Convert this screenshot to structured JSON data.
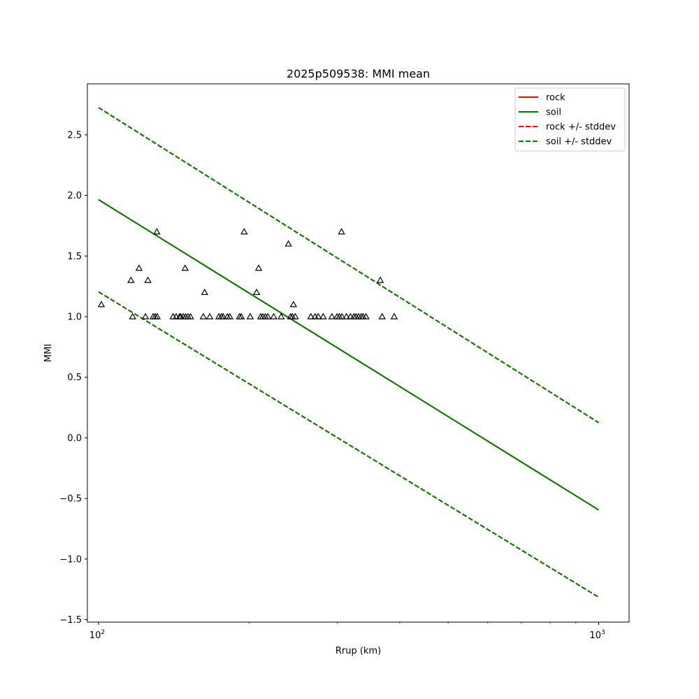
{
  "chart_data": {
    "type": "scatter",
    "title": "2025p509538: MMI mean",
    "xlabel": "Rrup (km)",
    "ylabel": "MMI",
    "xscale": "log",
    "xlim": [
      95,
      1150
    ],
    "ylim": [
      -1.52,
      2.92
    ],
    "grid": false,
    "legend_position": "top-right",
    "y_ticks": [
      {
        "value": -1.5,
        "label": "−1.5"
      },
      {
        "value": -1.0,
        "label": "−1.0"
      },
      {
        "value": -0.5,
        "label": "−0.5"
      },
      {
        "value": 0.0,
        "label": "0.0"
      },
      {
        "value": 0.5,
        "label": "0.5"
      },
      {
        "value": 1.0,
        "label": "1.0"
      },
      {
        "value": 1.5,
        "label": "1.5"
      },
      {
        "value": 2.0,
        "label": "2.0"
      },
      {
        "value": 2.5,
        "label": "2.5"
      }
    ],
    "x_ticks": [
      {
        "value": 100,
        "base": "10",
        "exp": "2"
      },
      {
        "value": 1000,
        "base": "10",
        "exp": "3"
      }
    ],
    "x_minor_ticks": [
      200,
      300,
      400,
      500,
      600,
      700,
      800,
      900
    ],
    "series": [
      {
        "name": "rock",
        "color": "#ff0000",
        "dash": false,
        "x": [
          100,
          1000
        ],
        "y": [
          1.965,
          -0.595
        ]
      },
      {
        "name": "soil",
        "color": "#008000",
        "dash": false,
        "x": [
          100,
          1000
        ],
        "y": [
          1.965,
          -0.595
        ]
      },
      {
        "name": "rock +/- stddev",
        "color": "#ff0000",
        "dash": true,
        "x": [
          100,
          1000
        ],
        "y": [
          2.725,
          0.125
        ],
        "y2": [
          1.205,
          -1.315
        ]
      },
      {
        "name": "soil +/- stddev",
        "color": "#008000",
        "dash": true,
        "x": [
          100,
          1000
        ],
        "y": [
          2.725,
          0.125
        ],
        "y2": [
          1.205,
          -1.315
        ]
      }
    ],
    "observations": {
      "marker": "triangle",
      "color": "#000000",
      "points": [
        [
          101.3,
          1.1
        ],
        [
          116.1,
          1.3
        ],
        [
          117.0,
          1.0
        ],
        [
          120.5,
          1.4
        ],
        [
          124.1,
          1.0
        ],
        [
          125.5,
          1.3
        ],
        [
          128.6,
          1.0
        ],
        [
          129.8,
          1.0
        ],
        [
          131.0,
          1.0
        ],
        [
          130.8,
          1.7
        ],
        [
          141.0,
          1.0
        ],
        [
          143.0,
          1.0
        ],
        [
          145.3,
          1.0
        ],
        [
          146.0,
          1.0
        ],
        [
          147.7,
          1.0
        ],
        [
          149.0,
          1.4
        ],
        [
          149.3,
          1.0
        ],
        [
          150.9,
          1.0
        ],
        [
          152.7,
          1.0
        ],
        [
          162.0,
          1.0
        ],
        [
          163.0,
          1.2
        ],
        [
          166.9,
          1.0
        ],
        [
          174.0,
          1.0
        ],
        [
          176.0,
          1.0
        ],
        [
          177.5,
          1.0
        ],
        [
          181.0,
          1.0
        ],
        [
          183.0,
          1.0
        ],
        [
          191.3,
          1.0
        ],
        [
          192.9,
          1.0
        ],
        [
          195.5,
          1.7
        ],
        [
          201.0,
          1.0
        ],
        [
          207.0,
          1.2
        ],
        [
          209.0,
          1.4
        ],
        [
          211.0,
          1.0
        ],
        [
          213.0,
          1.0
        ],
        [
          215.5,
          1.0
        ],
        [
          218.0,
          1.0
        ],
        [
          224.0,
          1.0
        ],
        [
          231.8,
          1.0
        ],
        [
          239.7,
          1.6
        ],
        [
          242.0,
          1.0
        ],
        [
          244.0,
          1.0
        ],
        [
          245.3,
          1.1
        ],
        [
          247.3,
          1.0
        ],
        [
          265.8,
          1.0
        ],
        [
          271.0,
          1.0
        ],
        [
          275.0,
          1.0
        ],
        [
          281.3,
          1.0
        ],
        [
          292.7,
          1.0
        ],
        [
          299.8,
          1.0
        ],
        [
          303.0,
          1.0
        ],
        [
          306.0,
          1.7
        ],
        [
          306.7,
          1.0
        ],
        [
          313.0,
          1.0
        ],
        [
          319.0,
          1.0
        ],
        [
          324.0,
          1.0
        ],
        [
          327.0,
          1.0
        ],
        [
          331.0,
          1.0
        ],
        [
          335.0,
          1.0
        ],
        [
          338.0,
          1.0
        ],
        [
          342.5,
          1.0
        ],
        [
          365.8,
          1.3
        ],
        [
          369.0,
          1.0
        ],
        [
          390.0,
          1.0
        ]
      ]
    }
  }
}
